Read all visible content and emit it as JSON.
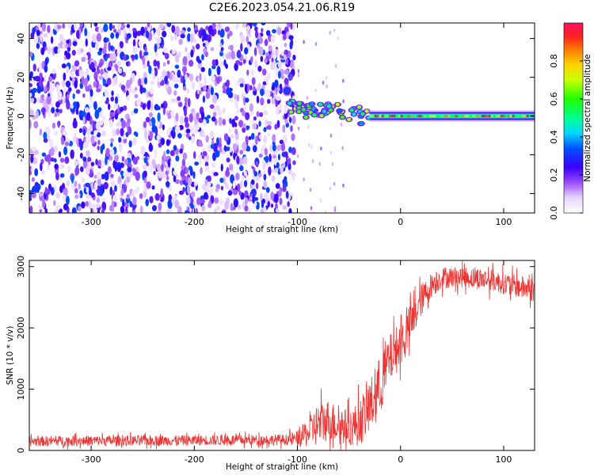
{
  "title": "C2E6.2023.054.21.06.R19",
  "chart_data": [
    {
      "type": "heatmap",
      "xlabel": "Height of straight line (km)",
      "ylabel": "Frequency (Hz)",
      "xlim": [
        -360,
        130
      ],
      "ylim": [
        -50,
        48
      ],
      "xticks": [
        -300,
        -200,
        -100,
        0,
        100
      ],
      "xtick_labels": [
        "-300",
        "-200",
        "-100",
        "0",
        "100"
      ],
      "yticks": [
        -40,
        -20,
        0,
        20,
        40
      ],
      "ytick_labels": [
        "-40",
        "-20",
        "0",
        "20",
        "40"
      ],
      "colorbar": {
        "label": "Normalized spectral amplitude",
        "range": [
          0,
          1
        ],
        "ticks": [
          0.0,
          0.2,
          0.4,
          0.6,
          0.8
        ],
        "tick_labels": [
          "0.0",
          "0.2",
          "0.4",
          "0.6",
          "0.8"
        ],
        "colormap": "gist_rainbow (white at low end)"
      },
      "regions": [
        {
          "name": "noise",
          "x_range": [
            -360,
            -103
          ],
          "f_range": [
            -50,
            48
          ],
          "amplitude": [
            0.05,
            0.35
          ]
        },
        {
          "name": "signal_onset",
          "x_range": [
            -112,
            -108
          ],
          "center_f": 13,
          "amplitude": 0.6
        },
        {
          "name": "signal_descent",
          "x_range": [
            -108,
            -30
          ],
          "center_f_start": 7,
          "center_f_end": 0,
          "amplitude": [
            0.3,
            0.7
          ]
        },
        {
          "name": "carrier_line",
          "x_range": [
            -30,
            130
          ],
          "center_f": 0,
          "amplitude": [
            0.5,
            1.0
          ]
        }
      ],
      "grid": false
    },
    {
      "type": "line",
      "xlabel": "Height of straight line (km)",
      "ylabel": "SNR (10 * v/v)",
      "xlim": [
        -360,
        130
      ],
      "ylim": [
        0,
        3100
      ],
      "xticks": [
        -300,
        -200,
        -100,
        0,
        100
      ],
      "xtick_labels": [
        "-300",
        "-200",
        "-100",
        "0",
        "100"
      ],
      "yticks": [
        0,
        1000,
        2000,
        3000
      ],
      "ytick_labels": [
        "0",
        "1000",
        "2000",
        "3000"
      ],
      "color": "#ef3434",
      "grid": false,
      "series": [
        {
          "x": [
            -360,
            -300,
            -250,
            -200,
            -150,
            -110,
            -100,
            -90,
            -80,
            -70,
            -60,
            -50,
            -40,
            -30,
            -20,
            -15,
            -10,
            0,
            10,
            20,
            30,
            40,
            60,
            80,
            100,
            120,
            130
          ],
          "y": [
            150,
            160,
            160,
            165,
            170,
            175,
            190,
            280,
            430,
            500,
            420,
            370,
            450,
            700,
            1050,
            1300,
            1500,
            1750,
            2050,
            2450,
            2700,
            2820,
            2830,
            2800,
            2730,
            2650,
            2620
          ],
          "noise_amplitude": [
            90,
            95,
            95,
            95,
            95,
            100,
            150,
            250,
            400,
            380,
            350,
            320,
            420,
            500,
            550,
            550,
            450,
            420,
            380,
            300,
            230,
            200,
            190,
            200,
            200,
            220,
            220
          ]
        }
      ]
    }
  ]
}
